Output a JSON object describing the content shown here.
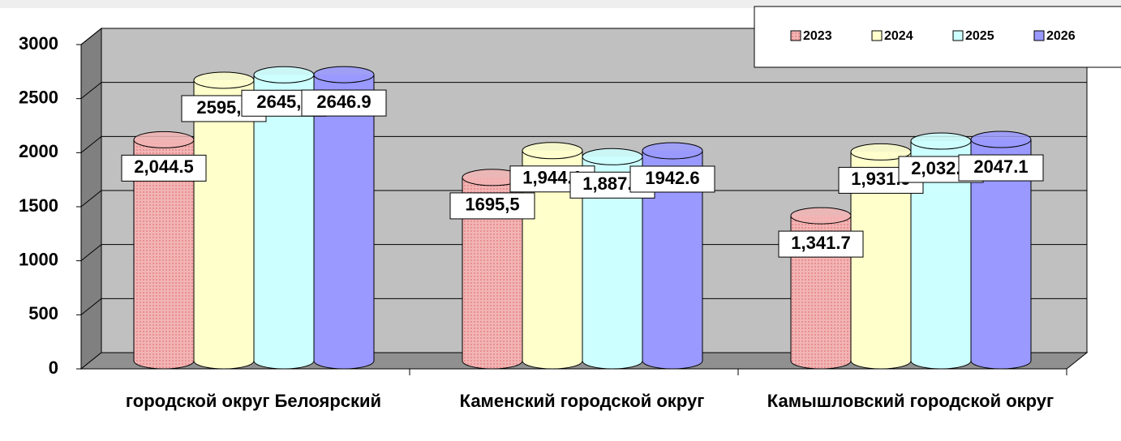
{
  "chart_data": {
    "type": "bar3d",
    "categories": [
      "городской округ Белоярский",
      "Каменский городской округ",
      "Камышловский городской округ"
    ],
    "series": [
      {
        "name": "2023",
        "color": "#f2b4b4",
        "values": [
          2044.5,
          1695.5,
          1341.7
        ],
        "value_labels": [
          "2,044.5",
          "1695,5",
          "1,341.7"
        ]
      },
      {
        "name": "2024",
        "color": "#ffffcc",
        "values": [
          2595.3,
          1944.1,
          1931.9
        ],
        "value_labels": [
          "2595,3",
          "1,944.1",
          "1,931.9"
        ]
      },
      {
        "name": "2025",
        "color": "#ccffff",
        "values": [
          2645.4,
          1887.7,
          2032.3
        ],
        "value_labels": [
          "2645,4",
          "1,887.7",
          "2,032.3"
        ]
      },
      {
        "name": "2026",
        "color": "#9999ff",
        "values": [
          2646.9,
          1942.6,
          2047.1
        ]
      }
    ],
    "ylim": [
      0,
      3000
    ],
    "yticks": [
      0,
      500,
      1000,
      1500,
      2000,
      2500,
      3000
    ],
    "grid": true,
    "legend": "top-right"
  }
}
